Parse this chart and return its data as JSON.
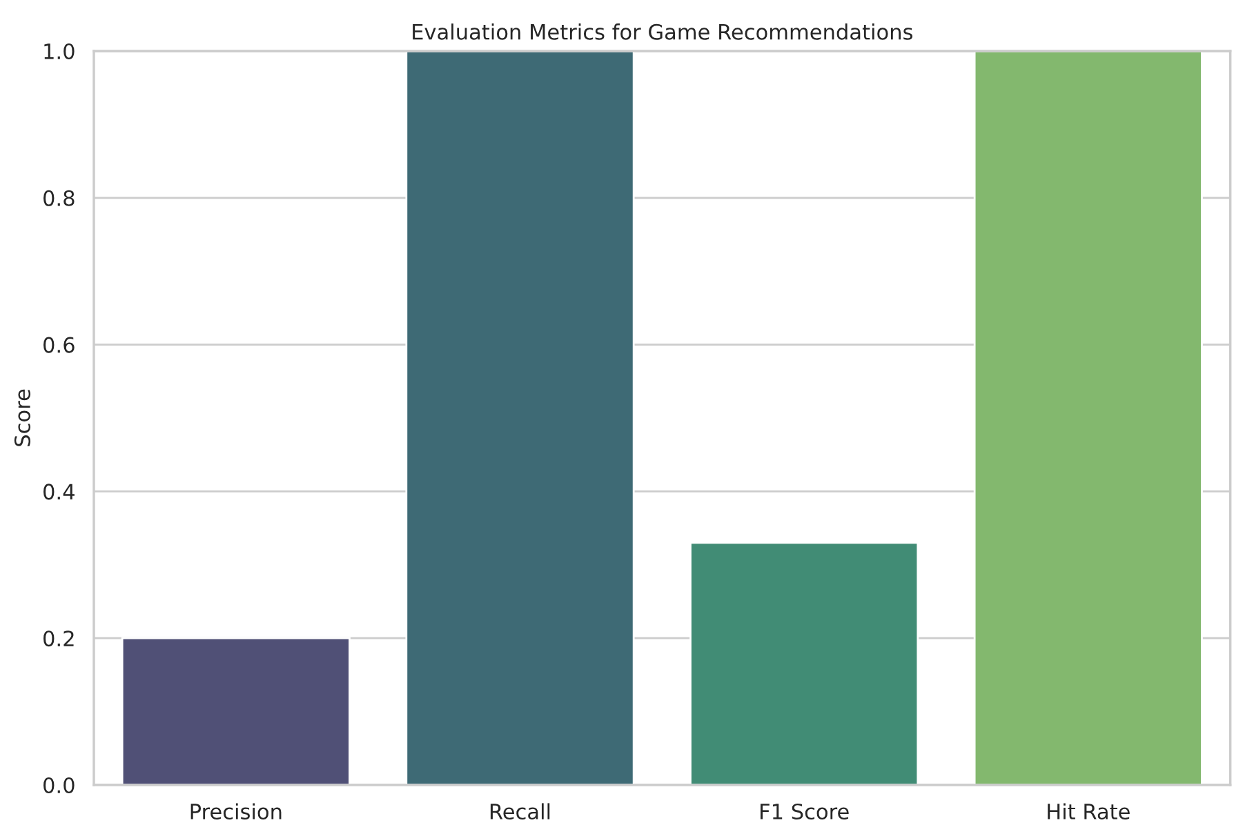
{
  "chart_data": {
    "type": "bar",
    "title": "Evaluation Metrics for Game Recommendations",
    "ylabel": "Score",
    "categories": [
      "Precision",
      "Recall",
      "F1 Score",
      "Hit Rate"
    ],
    "values": [
      0.2,
      1.0,
      0.33,
      1.0
    ],
    "colors": [
      "#4a4a7c",
      "#35707e",
      "#35987a",
      "#7dc462"
    ],
    "ylim": [
      0,
      1.0
    ],
    "yticks": [
      {
        "value": 0,
        "label": "0.0"
      },
      {
        "value": 0.2,
        "label": "0.2"
      },
      {
        "value": 0.4,
        "label": "0.4"
      },
      {
        "value": 0.6,
        "label": "0.6"
      },
      {
        "value": 0.8,
        "label": "0.8"
      },
      {
        "value": 1.0,
        "label": "1.0"
      }
    ],
    "grid": "y"
  }
}
